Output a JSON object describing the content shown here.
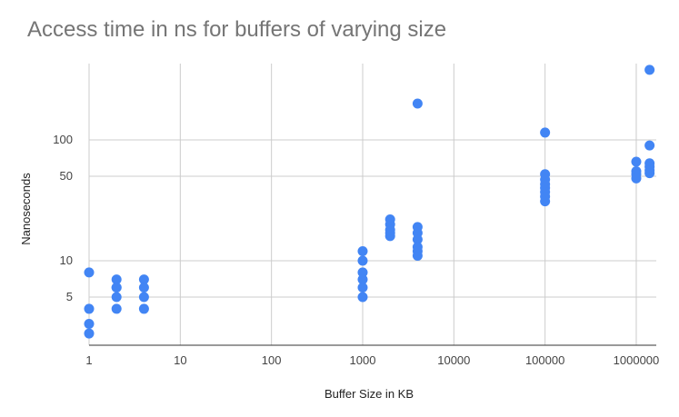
{
  "chart_data": {
    "type": "scatter",
    "title": "Access time in ns for buffers of varying size",
    "xlabel": "Buffer Size in KB",
    "ylabel": "Nanoseconds",
    "xscale": "log",
    "yscale": "log",
    "xlim": [
      1,
      1500000
    ],
    "ylim": [
      2.5,
      400
    ],
    "grid": true,
    "legend": "none",
    "x_ticks": [
      "1",
      "10",
      "100",
      "1000",
      "10000",
      "100000",
      "1000000"
    ],
    "y_ticks": [
      "5",
      "10",
      "50",
      "100"
    ],
    "point_color": "#4285f4",
    "points": [
      {
        "x": 1,
        "y": 8
      },
      {
        "x": 1,
        "y": 4
      },
      {
        "x": 1,
        "y": 3
      },
      {
        "x": 1,
        "y": 2.5
      },
      {
        "x": 2,
        "y": 7
      },
      {
        "x": 2,
        "y": 6
      },
      {
        "x": 2,
        "y": 6
      },
      {
        "x": 2,
        "y": 5
      },
      {
        "x": 2,
        "y": 4
      },
      {
        "x": 4,
        "y": 7
      },
      {
        "x": 4,
        "y": 6
      },
      {
        "x": 4,
        "y": 5
      },
      {
        "x": 4,
        "y": 4
      },
      {
        "x": 1000,
        "y": 12
      },
      {
        "x": 1000,
        "y": 10
      },
      {
        "x": 1000,
        "y": 8
      },
      {
        "x": 1000,
        "y": 7
      },
      {
        "x": 1000,
        "y": 6
      },
      {
        "x": 1000,
        "y": 5
      },
      {
        "x": 2000,
        "y": 22
      },
      {
        "x": 2000,
        "y": 20
      },
      {
        "x": 2000,
        "y": 18
      },
      {
        "x": 2000,
        "y": 17
      },
      {
        "x": 2000,
        "y": 16
      },
      {
        "x": 4000,
        "y": 200
      },
      {
        "x": 4000,
        "y": 19
      },
      {
        "x": 4000,
        "y": 17
      },
      {
        "x": 4000,
        "y": 15
      },
      {
        "x": 4000,
        "y": 13
      },
      {
        "x": 4000,
        "y": 12
      },
      {
        "x": 4000,
        "y": 11
      },
      {
        "x": 100000,
        "y": 115
      },
      {
        "x": 100000,
        "y": 52
      },
      {
        "x": 100000,
        "y": 47
      },
      {
        "x": 100000,
        "y": 43
      },
      {
        "x": 100000,
        "y": 40
      },
      {
        "x": 100000,
        "y": 37
      },
      {
        "x": 100000,
        "y": 34
      },
      {
        "x": 100000,
        "y": 31
      },
      {
        "x": 1000000,
        "y": 66
      },
      {
        "x": 1000000,
        "y": 55
      },
      {
        "x": 1000000,
        "y": 52
      },
      {
        "x": 1000000,
        "y": 48
      },
      {
        "x": 1400000,
        "y": 380
      },
      {
        "x": 1400000,
        "y": 90
      },
      {
        "x": 1400000,
        "y": 64
      },
      {
        "x": 1400000,
        "y": 60
      },
      {
        "x": 1400000,
        "y": 56
      },
      {
        "x": 1400000,
        "y": 53
      }
    ]
  }
}
